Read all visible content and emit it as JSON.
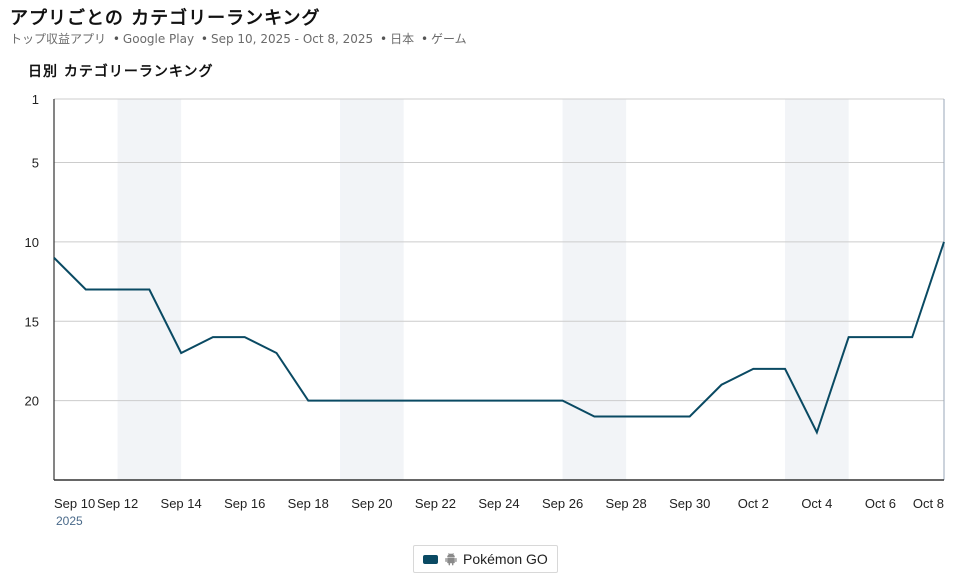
{
  "header": {
    "title": "アプリごとの カテゴリーランキング",
    "subtitle": {
      "list": "トップ収益アプリ",
      "platform": "Google Play",
      "date_range": "Sep 10, 2025 - Oct 8, 2025",
      "country": "日本",
      "category": "ゲーム",
      "separator": "•"
    }
  },
  "chart_title": "日別 カテゴリーランキング",
  "legend": {
    "label": "Pokémon GO",
    "platform_icon": "android-icon",
    "color": "#0a4a63"
  },
  "colors": {
    "line": "#0a4a63",
    "weekend_band": "#f2f4f7",
    "grid": "#cccccc",
    "axis": "#333333"
  },
  "chart_data": {
    "type": "line",
    "title": "日別 カテゴリーランキング",
    "y_inverted": true,
    "ylim": [
      1,
      25
    ],
    "yticks": [
      1,
      5,
      10,
      15,
      20
    ],
    "x_tick_labels": [
      "Sep 10",
      "Sep 12",
      "Sep 14",
      "Sep 16",
      "Sep 18",
      "Sep 20",
      "Sep 22",
      "Sep 24",
      "Sep 26",
      "Sep 28",
      "Sep 30",
      "Oct 2",
      "Oct 4",
      "Oct 6",
      "Oct 8"
    ],
    "x_year_label": "2025",
    "x": [
      "Sep 10",
      "Sep 11",
      "Sep 12",
      "Sep 13",
      "Sep 14",
      "Sep 15",
      "Sep 16",
      "Sep 17",
      "Sep 18",
      "Sep 19",
      "Sep 20",
      "Sep 21",
      "Sep 22",
      "Sep 23",
      "Sep 24",
      "Sep 25",
      "Sep 26",
      "Sep 27",
      "Sep 28",
      "Sep 29",
      "Sep 30",
      "Oct 1",
      "Oct 2",
      "Oct 3",
      "Oct 4",
      "Oct 5",
      "Oct 6",
      "Oct 7",
      "Oct 8"
    ],
    "weekend_bands": [
      [
        "Sep 12",
        "Sep 14"
      ],
      [
        "Sep 19",
        "Sep 21"
      ],
      [
        "Sep 26",
        "Sep 28"
      ],
      [
        "Oct 3",
        "Oct 5"
      ]
    ],
    "grid": true,
    "legend_position": "bottom",
    "series": [
      {
        "name": "Pokémon GO",
        "values": [
          11,
          13,
          13,
          13,
          17,
          16,
          16,
          17,
          20,
          20,
          20,
          20,
          20,
          20,
          20,
          20,
          20,
          21,
          21,
          21,
          21,
          19,
          18,
          18,
          22,
          16,
          16,
          16,
          10
        ]
      }
    ]
  }
}
